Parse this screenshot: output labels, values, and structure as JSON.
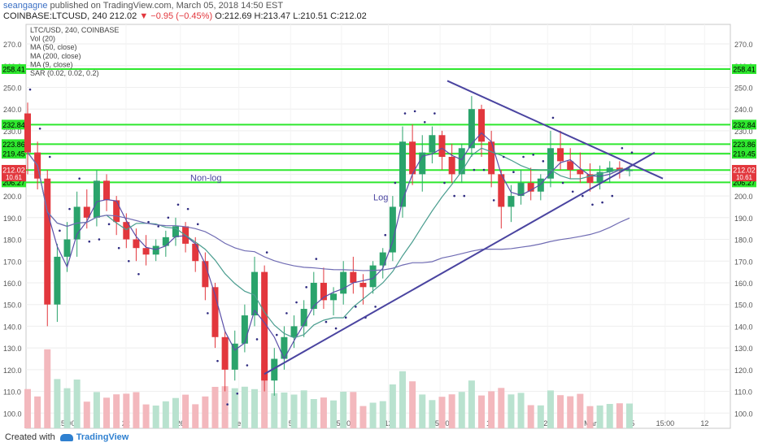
{
  "header": {
    "user": "seangagne",
    "published_text": "published on TradingView.com, March 05, 2018 14:50 EST",
    "symbol": "COINBASE:LTCUSD, 240",
    "last": "212.02",
    "change": "▼ −0.95 (−0.45%)",
    "open": "O:212.69",
    "high": "H:213.47",
    "low": "L:210.51",
    "close": "C:212.02"
  },
  "legend": [
    "LTC/USD, 240, COINBASE",
    "Vol (20)",
    "MA (50, close)",
    "MA (200, close)",
    "MA (9, close)",
    "SAR (0.02, 0.02, 0.2)"
  ],
  "footer": {
    "created_with": "Created with",
    "brand": "TradingView"
  },
  "chart_data": {
    "type": "candlestick",
    "y_axis": {
      "min": 93,
      "max": 279,
      "ticks": [
        100,
        110,
        120,
        130,
        140,
        150,
        160,
        170,
        180,
        190,
        200,
        210,
        220,
        230,
        240,
        250,
        260,
        270
      ]
    },
    "x_ticks": [
      "15:00",
      "22",
      "26",
      "Feb",
      "5",
      "15:00",
      "12",
      "15:00",
      "19",
      "23",
      "Mar",
      "5",
      "15:00",
      "12"
    ],
    "price_levels": [
      {
        "label": "258.41",
        "value": 258.41
      },
      {
        "label": "232.84",
        "value": 232.84
      },
      {
        "label": "223.86",
        "value": 223.86
      },
      {
        "label": "219.45",
        "value": 219.45
      },
      {
        "label": "211.93",
        "value": 211.93
      },
      {
        "label": "206.27",
        "value": 206.27
      }
    ],
    "current_price": "212.02",
    "secondary_price_label": "10.61",
    "annotations": [
      {
        "text": "Non-log"
      },
      {
        "text": "Log"
      }
    ],
    "candles": [
      [
        238,
        243,
        210,
        220
      ],
      [
        220,
        225,
        203,
        208
      ],
      [
        208,
        212,
        140,
        150
      ],
      [
        150,
        178,
        142,
        172
      ],
      [
        172,
        188,
        165,
        180
      ],
      [
        180,
        202,
        172,
        195
      ],
      [
        195,
        203,
        185,
        190
      ],
      [
        190,
        212,
        186,
        207
      ],
      [
        207,
        210,
        193,
        198
      ],
      [
        198,
        200,
        182,
        188
      ],
      [
        188,
        192,
        176,
        180
      ],
      [
        180,
        185,
        170,
        176
      ],
      [
        176,
        182,
        168,
        173
      ],
      [
        173,
        180,
        170,
        177
      ],
      [
        177,
        184,
        172,
        181
      ],
      [
        181,
        190,
        177,
        186
      ],
      [
        186,
        188,
        174,
        178
      ],
      [
        178,
        181,
        165,
        170
      ],
      [
        170,
        174,
        152,
        158
      ],
      [
        158,
        160,
        130,
        135
      ],
      [
        135,
        138,
        110,
        120
      ],
      [
        120,
        138,
        115,
        132
      ],
      [
        132,
        150,
        128,
        145
      ],
      [
        145,
        172,
        140,
        165
      ],
      [
        165,
        168,
        110,
        115
      ],
      [
        115,
        130,
        108,
        125
      ],
      [
        125,
        140,
        120,
        135
      ],
      [
        135,
        145,
        130,
        140
      ],
      [
        140,
        152,
        135,
        148
      ],
      [
        148,
        165,
        145,
        160
      ],
      [
        160,
        167,
        148,
        152
      ],
      [
        152,
        158,
        145,
        155
      ],
      [
        155,
        170,
        150,
        165
      ],
      [
        165,
        172,
        155,
        160
      ],
      [
        160,
        164,
        150,
        158
      ],
      [
        158,
        170,
        155,
        168
      ],
      [
        168,
        176,
        162,
        174
      ],
      [
        174,
        200,
        170,
        195
      ],
      [
        195,
        232,
        190,
        225
      ],
      [
        225,
        233,
        205,
        210
      ],
      [
        210,
        228,
        202,
        220
      ],
      [
        220,
        232,
        215,
        228
      ],
      [
        228,
        230,
        212,
        218
      ],
      [
        218,
        224,
        206,
        210
      ],
      [
        210,
        224,
        206,
        222
      ],
      [
        222,
        246,
        218,
        240
      ],
      [
        240,
        242,
        218,
        225
      ],
      [
        225,
        230,
        204,
        210
      ],
      [
        210,
        212,
        185,
        195
      ],
      [
        195,
        205,
        188,
        200
      ],
      [
        200,
        212,
        196,
        206
      ],
      [
        206,
        213,
        198,
        202
      ],
      [
        202,
        210,
        198,
        208
      ],
      [
        208,
        230,
        204,
        222
      ],
      [
        222,
        230,
        212,
        216
      ],
      [
        216,
        222,
        208,
        212
      ],
      [
        212,
        220,
        206,
        210
      ],
      [
        210,
        215,
        202,
        206
      ],
      [
        206,
        214,
        203,
        211
      ],
      [
        211,
        216,
        206,
        213
      ],
      [
        213,
        216,
        208,
        212
      ],
      [
        212,
        214,
        209,
        212
      ]
    ]
  }
}
